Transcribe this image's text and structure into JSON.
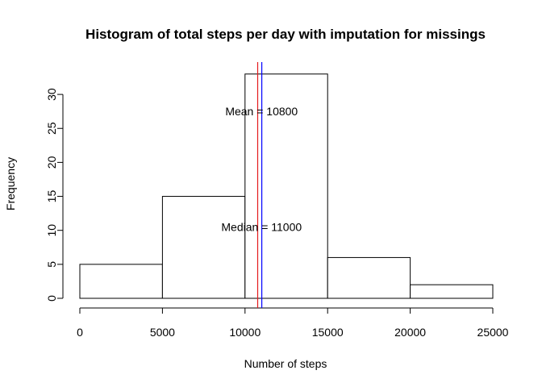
{
  "chart_data": {
    "type": "bar",
    "title": "Histogram of total steps per day with imputation for missings",
    "xlabel": "Number of steps",
    "ylabel": "Frequency",
    "bins": [
      {
        "start": 0,
        "end": 5000,
        "count": 5
      },
      {
        "start": 5000,
        "end": 10000,
        "count": 15
      },
      {
        "start": 10000,
        "end": 15000,
        "count": 33
      },
      {
        "start": 15000,
        "end": 20000,
        "count": 6
      },
      {
        "start": 20000,
        "end": 25000,
        "count": 2
      }
    ],
    "xlim": [
      0,
      25000
    ],
    "ylim": [
      0,
      33
    ],
    "xticks": [
      0,
      5000,
      10000,
      15000,
      20000,
      25000
    ],
    "xtick_labels": [
      "0",
      "5000",
      "10000",
      "15000",
      "20000",
      "25000"
    ],
    "yticks": [
      0,
      5,
      10,
      15,
      20,
      25,
      30
    ],
    "ytick_labels": [
      "0",
      "5",
      "10",
      "15",
      "20",
      "25",
      "30"
    ],
    "vlines": [
      {
        "name": "mean",
        "x": 10766,
        "color": "#e41a1c"
      },
      {
        "name": "median",
        "x": 11015,
        "color": "#0000ff"
      }
    ],
    "annotations": [
      {
        "text": "Mean = 10800",
        "x": 11000,
        "y": 27.5
      },
      {
        "text": "Median = 11000",
        "x": 11000,
        "y": 10.5
      }
    ],
    "grid": false,
    "colors": {
      "bar_fill": "#ffffff",
      "bar_stroke": "#000000"
    }
  }
}
